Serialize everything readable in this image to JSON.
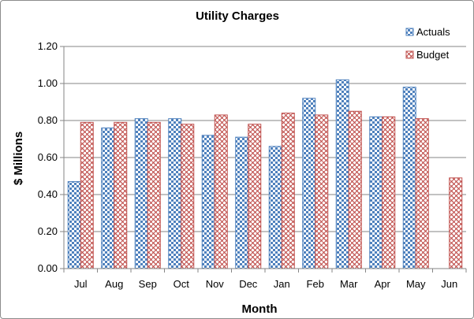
{
  "chart_data": {
    "type": "bar",
    "title": "Utility Charges",
    "xlabel": "Month",
    "ylabel": "$ Millions",
    "ylim": [
      0,
      1.2
    ],
    "yticks": [
      "0.00",
      "0.20",
      "0.40",
      "0.60",
      "0.80",
      "1.00",
      "1.20"
    ],
    "categories": [
      "Jul",
      "Aug",
      "Sep",
      "Oct",
      "Nov",
      "Dec",
      "Jan",
      "Feb",
      "Mar",
      "Apr",
      "May",
      "Jun"
    ],
    "series": [
      {
        "name": "Actuals",
        "values": [
          0.47,
          0.76,
          0.81,
          0.81,
          0.72,
          0.71,
          0.66,
          0.92,
          1.02,
          0.82,
          0.98,
          null
        ],
        "color": "#4f81bd"
      },
      {
        "name": "Budget",
        "values": [
          0.79,
          0.79,
          0.79,
          0.78,
          0.83,
          0.78,
          0.84,
          0.83,
          0.85,
          0.82,
          0.81,
          0.49
        ],
        "color": "#c0504d"
      }
    ],
    "grid": true,
    "legend": "top-right"
  }
}
